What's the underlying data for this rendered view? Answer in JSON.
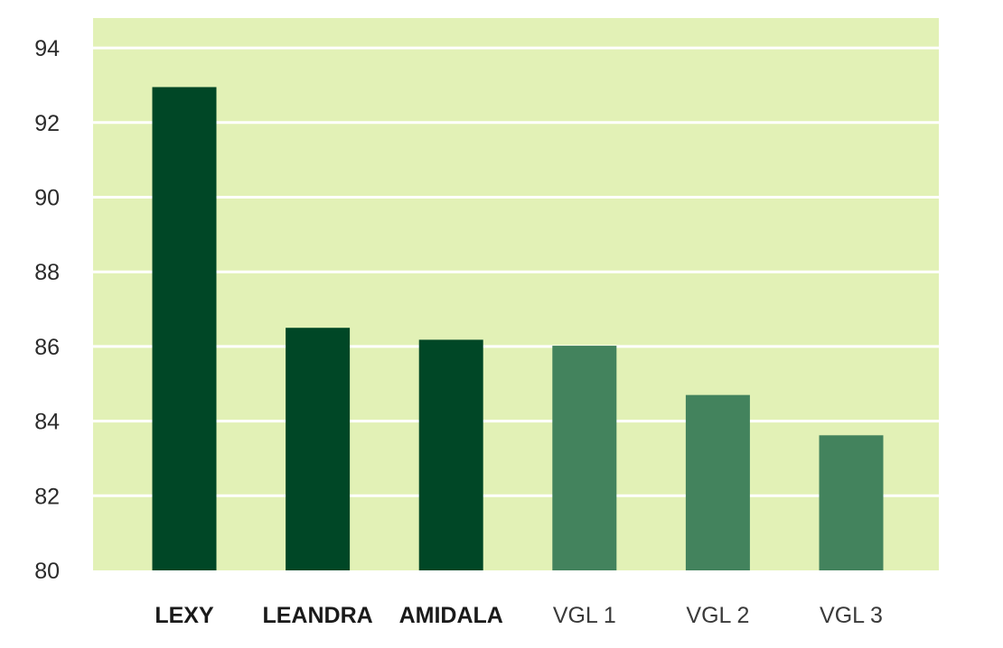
{
  "chart_data": {
    "type": "bar",
    "title": "",
    "xlabel": "",
    "ylabel": "",
    "ylim": [
      80,
      94.8
    ],
    "yticks": [
      80,
      82,
      84,
      86,
      88,
      90,
      92,
      94
    ],
    "grid": true,
    "categories": [
      "LEXY",
      "LEANDRA",
      "AMIDALA",
      "VGL 1",
      "VGL 2",
      "VGL 3"
    ],
    "values": [
      92.95,
      86.5,
      86.18,
      86.02,
      84.7,
      83.62
    ],
    "category_emphasis": [
      "bold",
      "bold",
      "bold",
      "normal",
      "normal",
      "normal"
    ],
    "bar_colors": [
      "#004726",
      "#004726",
      "#004726",
      "#43835d",
      "#43835d",
      "#43835d"
    ]
  },
  "colors": {
    "plot_background": "#e2f1b6",
    "gridline": "#ffffff",
    "highlight_bar": "#004726",
    "comparison_bar": "#43835d"
  }
}
